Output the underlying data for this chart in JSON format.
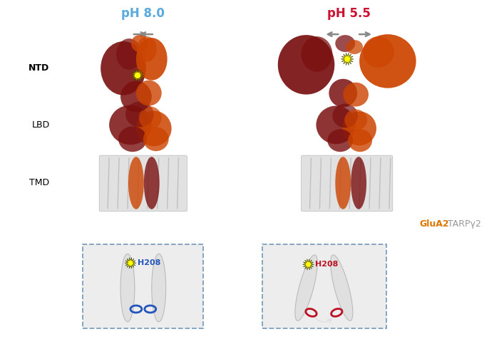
{
  "title_left": "pH 8.0",
  "title_right": "pH 5.5",
  "title_left_color": "#5aaadd",
  "title_right_color": "#cc1133",
  "label_ntd": "NTD",
  "label_lbd": "LBD",
  "label_tmd": "TMD",
  "label_glua2": "GluA2",
  "label_tarp": "TARPγ2",
  "label_glua2_color": "#dd7700",
  "label_tarp_color": "#999999",
  "h208_left": "H208",
  "h208_right": "H208",
  "h208_color_left": "#2255bb",
  "h208_color_right": "#bb1122",
  "background_color": "#ffffff",
  "arrow_color": "#888888",
  "dark_red": "#7a1010",
  "orange": "#cc4400",
  "tmd_bg": "#d8d8d8",
  "tmd_line": "#aaaaaa",
  "inset_bg": "#ececec",
  "inset_border": "#7799bb",
  "helix_color": "#e0e0e0",
  "helix_edge": "#bbbbbb"
}
